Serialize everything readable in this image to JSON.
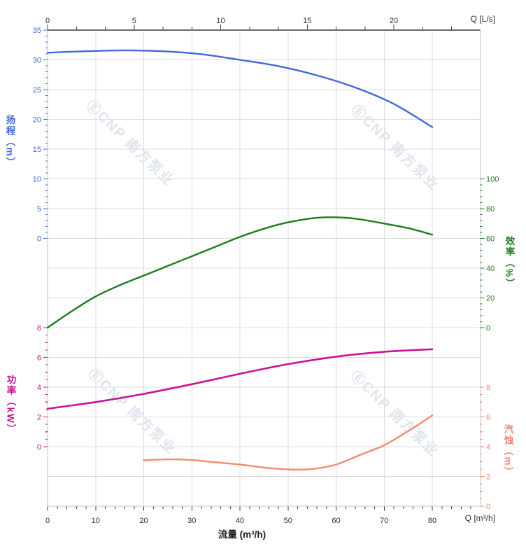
{
  "labels": {
    "top_unit": "Q [L/s]",
    "bottom_unit": "Q [m³/h]",
    "flow_title": "流量 (m³/h)",
    "head_title": "扬程（m）",
    "power_title": "功率（kW）",
    "eff_title": "效率（%）",
    "npsh_title": "汽蚀（m）"
  },
  "watermark": {
    "text": "ⒺCNP 南方泵业",
    "count": 4
  },
  "chart_data": {
    "type": "line",
    "grid": true,
    "legend": false,
    "x_bottom": {
      "title": "流量 (m³/h)",
      "unit_label": "Q [m³/h]",
      "range": [
        0,
        90
      ],
      "major_ticks": [
        0,
        10,
        20,
        30,
        40,
        50,
        60,
        70,
        80
      ],
      "minor_step": 2
    },
    "x_top": {
      "unit_label": "Q [L/s]",
      "range": [
        0,
        25
      ],
      "major_ticks": [
        0,
        5,
        10,
        15,
        20
      ],
      "minor_divisions_per_major": 3
    },
    "y_axes": [
      {
        "id": "head",
        "title": "扬程（m）",
        "side": "left",
        "color": "#4267e0",
        "range": [
          0,
          35
        ],
        "major_ticks": [
          35,
          30,
          25,
          20,
          15,
          10,
          5,
          0
        ],
        "minor_step": 1
      },
      {
        "id": "efficiency",
        "title": "效率（%）",
        "side": "right",
        "color": "#1d7e1d",
        "range": [
          0,
          100
        ],
        "major_ticks": [
          100,
          80,
          60,
          40,
          20,
          0
        ],
        "minor_step": 4
      },
      {
        "id": "power",
        "title": "功率（kW）",
        "side": "left",
        "color": "#cb1295",
        "range": [
          0,
          8
        ],
        "major_ticks": [
          8,
          6,
          4,
          2,
          0
        ],
        "minor_step": 0.5
      },
      {
        "id": "npsh",
        "title": "汽蚀（m）",
        "side": "right",
        "color": "#f5836e",
        "range": [
          0,
          8
        ],
        "major_ticks": [
          8,
          6,
          4,
          2,
          0
        ],
        "minor_step": 0.5
      }
    ],
    "series": [
      {
        "id": "head",
        "name": "扬程",
        "axis": "head",
        "color": "#4267e0",
        "width": 2.4,
        "points": [
          [
            0,
            31.2
          ],
          [
            8,
            31.45
          ],
          [
            16,
            31.6
          ],
          [
            24,
            31.45
          ],
          [
            32,
            30.95
          ],
          [
            40,
            30.0
          ],
          [
            48,
            28.95
          ],
          [
            56,
            27.4
          ],
          [
            64,
            25.35
          ],
          [
            72,
            22.6
          ],
          [
            80,
            18.7
          ]
        ]
      },
      {
        "id": "efficiency",
        "name": "效率",
        "axis": "efficiency",
        "color": "#1d7e1d",
        "width": 2.4,
        "points": [
          [
            0,
            0
          ],
          [
            5,
            11
          ],
          [
            10,
            21
          ],
          [
            15,
            28.5
          ],
          [
            20,
            35
          ],
          [
            25,
            41.5
          ],
          [
            30,
            48
          ],
          [
            35,
            54.5
          ],
          [
            40,
            61
          ],
          [
            45,
            66.5
          ],
          [
            50,
            70.8
          ],
          [
            55,
            73.5
          ],
          [
            58,
            74.2
          ],
          [
            62,
            73.9
          ],
          [
            65,
            72.8
          ],
          [
            70,
            70
          ],
          [
            75,
            66.9
          ],
          [
            80,
            62.5
          ]
        ]
      },
      {
        "id": "power",
        "name": "功率",
        "axis": "power",
        "color": "#cb1295",
        "width": 2.6,
        "points": [
          [
            0,
            2.55
          ],
          [
            10,
            3.0
          ],
          [
            20,
            3.55
          ],
          [
            30,
            4.2
          ],
          [
            40,
            4.9
          ],
          [
            50,
            5.55
          ],
          [
            60,
            6.05
          ],
          [
            70,
            6.38
          ],
          [
            80,
            6.55
          ]
        ]
      },
      {
        "id": "npsh",
        "name": "汽蚀",
        "axis": "npsh",
        "color": "#f58a72",
        "width": 2.4,
        "points": [
          [
            20,
            3.08
          ],
          [
            25,
            3.15
          ],
          [
            30,
            3.1
          ],
          [
            35,
            2.95
          ],
          [
            40,
            2.8
          ],
          [
            45,
            2.6
          ],
          [
            50,
            2.47
          ],
          [
            55,
            2.5
          ],
          [
            60,
            2.8
          ],
          [
            65,
            3.45
          ],
          [
            70,
            4.1
          ],
          [
            75,
            5.05
          ],
          [
            80,
            6.1
          ]
        ]
      }
    ]
  }
}
